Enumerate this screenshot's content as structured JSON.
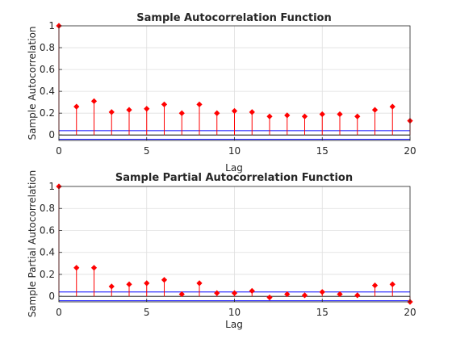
{
  "chart_data": [
    {
      "type": "stem",
      "title": "Sample Autocorrelation Function",
      "xlabel": "",
      "ylabel": "Sample Autocorrelation",
      "xlim": [
        0,
        20
      ],
      "ylim": [
        -0.05,
        1
      ],
      "xticks": [
        "0",
        "5",
        "10",
        "15",
        "20"
      ],
      "yticks": [
        "0",
        "0.2",
        "0.4",
        "0.6",
        "0.8",
        "1"
      ],
      "grid": true,
      "x": [
        0,
        1,
        2,
        3,
        4,
        5,
        6,
        7,
        8,
        9,
        10,
        11,
        12,
        13,
        14,
        15,
        16,
        17,
        18,
        19,
        20
      ],
      "values": [
        1.0,
        0.26,
        0.31,
        0.21,
        0.23,
        0.24,
        0.28,
        0.2,
        0.28,
        0.2,
        0.22,
        0.21,
        0.17,
        0.18,
        0.17,
        0.19,
        0.19,
        0.17,
        0.23,
        0.26,
        0.13
      ],
      "bounds": [
        0.04,
        -0.04
      ],
      "colors": {
        "stem": "#ff0000",
        "marker": "#ff0000",
        "bounds": "#0000ff",
        "zero": "#000000"
      }
    },
    {
      "type": "stem",
      "title": "Sample Partial Autocorrelation Function",
      "xlabel": "Lag",
      "ylabel": "Sample Partial Autocorrelation",
      "xlim": [
        0,
        20
      ],
      "ylim": [
        -0.05,
        1
      ],
      "xticks": [
        "0",
        "5",
        "10",
        "15",
        "20"
      ],
      "yticks": [
        "0",
        "0.2",
        "0.4",
        "0.6",
        "0.8",
        "1"
      ],
      "grid": true,
      "x": [
        0,
        1,
        2,
        3,
        4,
        5,
        6,
        7,
        8,
        9,
        10,
        11,
        12,
        13,
        14,
        15,
        16,
        17,
        18,
        19,
        20
      ],
      "values": [
        1.0,
        0.26,
        0.26,
        0.09,
        0.11,
        0.12,
        0.15,
        0.02,
        0.12,
        0.03,
        0.03,
        0.05,
        -0.01,
        0.02,
        0.01,
        0.04,
        0.02,
        0.01,
        0.1,
        0.11,
        -0.05
      ],
      "bounds": [
        0.04,
        -0.04
      ],
      "colors": {
        "stem": "#ff0000",
        "marker": "#ff0000",
        "bounds": "#0000ff",
        "zero": "#000000"
      }
    }
  ],
  "shared_xlabel_top": "Lag"
}
